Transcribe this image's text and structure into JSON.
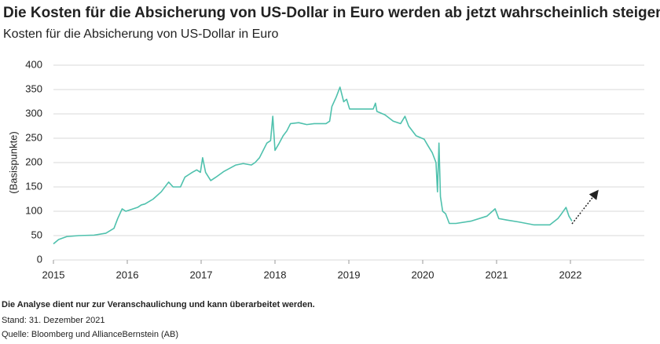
{
  "chart_data": {
    "type": "line",
    "title": "Die Kosten für die Absicherung von US-Dollar in Euro werden ab jetzt wahrscheinlich steigen",
    "subtitle": "Kosten für die Absicherung von US-Dollar in Euro",
    "y_label": "(Basispunkte)",
    "notes": [
      "Die Analyse dient nur zur Veranschaulichung und kann überarbeitet werden.",
      "Stand: 31. Dezember 2021",
      "Quelle: Bloomberg und AllianceBernstein (AB)"
    ],
    "x": [
      2015.0,
      2015.07,
      2015.18,
      2015.34,
      2015.55,
      2015.71,
      2015.82,
      2015.87,
      2015.93,
      2015.98,
      2016.14,
      2016.19,
      2016.24,
      2016.35,
      2016.46,
      2016.56,
      2016.62,
      2016.72,
      2016.78,
      2016.83,
      2016.88,
      2016.94,
      2016.99,
      2017.02,
      2017.06,
      2017.13,
      2017.2,
      2017.31,
      2017.47,
      2017.57,
      2017.68,
      2017.73,
      2017.79,
      2017.84,
      2017.89,
      2017.94,
      2017.97,
      2018.0,
      2018.05,
      2018.11,
      2018.16,
      2018.21,
      2018.32,
      2018.43,
      2018.53,
      2018.69,
      2018.74,
      2018.77,
      2018.83,
      2018.88,
      2018.93,
      2018.97,
      2019.01,
      2019.17,
      2019.33,
      2019.36,
      2019.38,
      2019.49,
      2019.6,
      2019.7,
      2019.76,
      2019.81,
      2019.91,
      2020.02,
      2020.07,
      2020.13,
      2020.18,
      2020.2,
      2020.22,
      2020.24,
      2020.27,
      2020.31,
      2020.36,
      2020.45,
      2020.66,
      2020.87,
      2020.98,
      2021.03,
      2021.14,
      2021.3,
      2021.51,
      2021.72,
      2021.83,
      2021.88,
      2021.94,
      2021.98,
      2022.02
    ],
    "series": [
      {
        "color": "#4fc1ad",
        "values": [
          33,
          42,
          48,
          50,
          51,
          55,
          65,
          85,
          105,
          100,
          108,
          113,
          115,
          125,
          140,
          160,
          150,
          150,
          170,
          175,
          180,
          185,
          180,
          210,
          180,
          163,
          170,
          182,
          195,
          198,
          195,
          200,
          210,
          225,
          240,
          245,
          295,
          225,
          238,
          255,
          265,
          280,
          282,
          278,
          280,
          280,
          285,
          315,
          335,
          355,
          325,
          330,
          310,
          310,
          310,
          322,
          305,
          298,
          285,
          280,
          295,
          275,
          255,
          248,
          235,
          220,
          200,
          140,
          240,
          130,
          100,
          95,
          75,
          75,
          80,
          90,
          105,
          85,
          82,
          78,
          72,
          72,
          85,
          95,
          108,
          90,
          80
        ]
      }
    ],
    "xlim": [
      2015,
      2023
    ],
    "xticks": [
      2015,
      2016,
      2017,
      2018,
      2019,
      2020,
      2021,
      2022
    ],
    "ylim": [
      0,
      400
    ],
    "yticks": [
      0,
      50,
      100,
      150,
      200,
      250,
      300,
      350,
      400
    ],
    "grid": true
  }
}
